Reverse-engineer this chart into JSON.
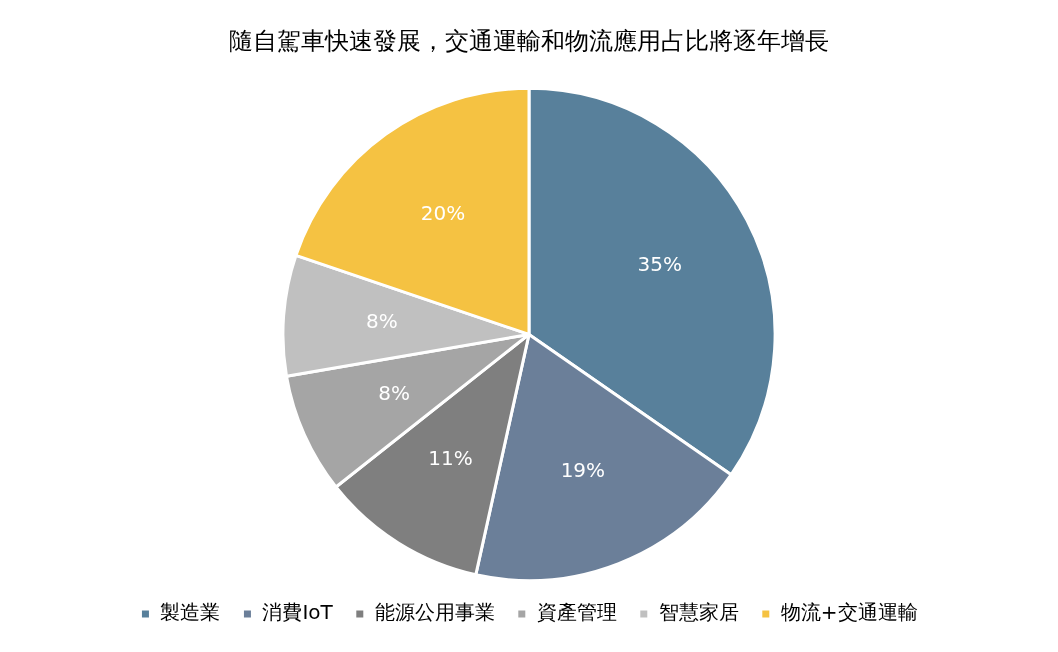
{
  "chart_data": {
    "type": "pie",
    "title": "隨自駕車快速發展，交通運輸和物流應用占比將逐年增長",
    "categories": [
      "製造業",
      "消費IoT",
      "能源公用事業",
      "資產管理",
      "智慧家居",
      "物流+交通運輸"
    ],
    "values": [
      35,
      19,
      11,
      8,
      8,
      20
    ],
    "colors": [
      "#58809b",
      "#6b7f99",
      "#7f7f7f",
      "#a5a5a5",
      "#c0c0c0",
      "#f5c242"
    ],
    "value_labels": [
      "35%",
      "19%",
      "11%",
      "8%",
      "8%",
      "20%"
    ],
    "legend": "bottom"
  }
}
